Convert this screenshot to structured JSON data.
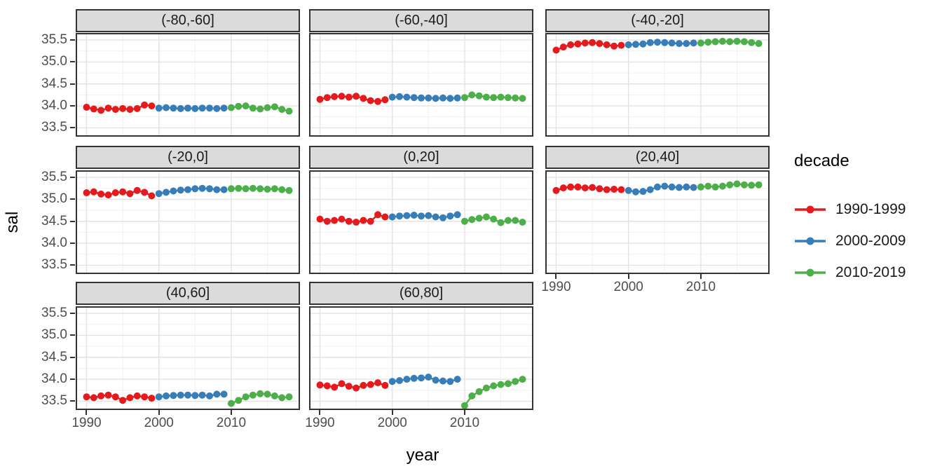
{
  "chart_data": {
    "type": "line",
    "title": "",
    "xlabel": "year",
    "ylabel": "sal",
    "xlim": [
      1988.5,
      2019.5
    ],
    "ylim": [
      33.3,
      35.66
    ],
    "x_ticks": [
      1990,
      2000,
      2010
    ],
    "y_ticks": [
      33.5,
      34.0,
      34.5,
      35.0,
      35.5
    ],
    "x_minor": [
      1995,
      2005,
      2015
    ],
    "y_minor": [
      33.75,
      34.25,
      34.75,
      35.25
    ],
    "grid": true,
    "legend_position": "right",
    "legend": {
      "title": "decade",
      "entries": [
        {
          "label": "1990-1999",
          "color": "#E41A1C"
        },
        {
          "label": "2000-2009",
          "color": "#377EB8"
        },
        {
          "label": "2010-2019",
          "color": "#4DAF4A"
        }
      ]
    },
    "x_by_series": {
      "1990-1999": [
        1990,
        1991,
        1992,
        1993,
        1994,
        1995,
        1996,
        1997,
        1998,
        1999
      ],
      "2000-2009": [
        2000,
        2001,
        2002,
        2003,
        2004,
        2005,
        2006,
        2007,
        2008,
        2009
      ],
      "2010-2019": [
        2010,
        2011,
        2012,
        2013,
        2014,
        2015,
        2016,
        2017,
        2018
      ]
    },
    "facets": [
      {
        "label": "(-80,-60]",
        "series": [
          {
            "name": "1990-1999",
            "y": [
              33.97,
              33.93,
              33.9,
              33.95,
              33.92,
              33.94,
              33.92,
              33.94,
              34.02,
              34.0
            ]
          },
          {
            "name": "2000-2009",
            "y": [
              33.95,
              33.96,
              33.95,
              33.94,
              33.95,
              33.94,
              33.95,
              33.95,
              33.94,
              33.95
            ]
          },
          {
            "name": "2010-2019",
            "y": [
              33.96,
              33.99,
              34.0,
              33.95,
              33.93,
              33.96,
              33.98,
              33.92,
              33.88
            ]
          }
        ]
      },
      {
        "label": "(-60,-40]",
        "series": [
          {
            "name": "1990-1999",
            "y": [
              34.15,
              34.19,
              34.21,
              34.22,
              34.2,
              34.22,
              34.17,
              34.12,
              34.1,
              34.14
            ]
          },
          {
            "name": "2000-2009",
            "y": [
              34.2,
              34.21,
              34.2,
              34.19,
              34.18,
              34.18,
              34.17,
              34.18,
              34.17,
              34.18
            ]
          },
          {
            "name": "2010-2019",
            "y": [
              34.19,
              34.25,
              34.23,
              34.2,
              34.19,
              34.2,
              34.19,
              34.18,
              34.17
            ]
          }
        ]
      },
      {
        "label": "(-40,-20]",
        "series": [
          {
            "name": "1990-1999",
            "y": [
              35.27,
              35.34,
              35.39,
              35.41,
              35.43,
              35.44,
              35.42,
              35.39,
              35.36,
              35.38
            ]
          },
          {
            "name": "2000-2009",
            "y": [
              35.39,
              35.4,
              35.41,
              35.44,
              35.45,
              35.44,
              35.43,
              35.42,
              35.42,
              35.43
            ]
          },
          {
            "name": "2010-2019",
            "y": [
              35.43,
              35.45,
              35.46,
              35.47,
              35.46,
              35.47,
              35.46,
              35.44,
              35.42
            ]
          }
        ]
      },
      {
        "label": "(-20,0]",
        "series": [
          {
            "name": "1990-1999",
            "y": [
              35.15,
              35.17,
              35.12,
              35.1,
              35.15,
              35.17,
              35.13,
              35.2,
              35.16,
              35.08
            ]
          },
          {
            "name": "2000-2009",
            "y": [
              35.13,
              35.16,
              35.19,
              35.21,
              35.22,
              35.24,
              35.25,
              35.24,
              35.22,
              35.22
            ]
          },
          {
            "name": "2010-2019",
            "y": [
              35.24,
              35.25,
              35.24,
              35.25,
              35.24,
              35.23,
              35.24,
              35.22,
              35.2
            ]
          }
        ]
      },
      {
        "label": "(0,20]",
        "series": [
          {
            "name": "1990-1999",
            "y": [
              34.55,
              34.5,
              34.52,
              34.55,
              34.5,
              34.48,
              34.52,
              34.5,
              34.65,
              34.6
            ]
          },
          {
            "name": "2000-2009",
            "y": [
              34.6,
              34.62,
              34.63,
              34.64,
              34.62,
              34.63,
              34.6,
              34.58,
              34.62,
              34.65
            ]
          },
          {
            "name": "2010-2019",
            "y": [
              34.5,
              34.54,
              34.57,
              34.6,
              34.55,
              34.47,
              34.52,
              34.52,
              34.48
            ]
          }
        ]
      },
      {
        "label": "(20,40]",
        "series": [
          {
            "name": "1990-1999",
            "y": [
              35.2,
              35.26,
              35.28,
              35.28,
              35.26,
              35.27,
              35.24,
              35.22,
              35.23,
              35.22
            ]
          },
          {
            "name": "2000-2009",
            "y": [
              35.2,
              35.17,
              35.18,
              35.22,
              35.28,
              35.3,
              35.28,
              35.27,
              35.28,
              35.27
            ]
          },
          {
            "name": "2010-2019",
            "y": [
              35.28,
              35.3,
              35.28,
              35.3,
              35.33,
              35.35,
              35.33,
              35.32,
              35.33
            ]
          }
        ]
      },
      {
        "label": "(40,60]",
        "series": [
          {
            "name": "1990-1999",
            "y": [
              33.6,
              33.58,
              33.62,
              33.64,
              33.6,
              33.52,
              33.58,
              33.62,
              33.6,
              33.57
            ]
          },
          {
            "name": "2000-2009",
            "y": [
              33.6,
              33.62,
              33.63,
              33.64,
              33.64,
              33.63,
              33.64,
              33.62,
              33.66,
              33.66
            ]
          },
          {
            "name": "2010-2019",
            "y": [
              33.45,
              33.52,
              33.6,
              33.64,
              33.67,
              33.66,
              33.62,
              33.58,
              33.6
            ]
          }
        ]
      },
      {
        "label": "(60,80]",
        "series": [
          {
            "name": "1990-1999",
            "y": [
              33.87,
              33.85,
              33.82,
              33.9,
              33.84,
              33.8,
              33.86,
              33.88,
              33.92,
              33.86
            ]
          },
          {
            "name": "2000-2009",
            "y": [
              33.95,
              33.97,
              34.0,
              34.02,
              34.03,
              34.05,
              33.98,
              33.96,
              33.95,
              34.0
            ]
          },
          {
            "name": "2010-2019",
            "y": [
              33.4,
              33.62,
              33.72,
              33.8,
              33.85,
              33.88,
              33.9,
              33.95,
              34.0
            ]
          }
        ]
      }
    ]
  },
  "theme": {
    "strip_bg": "#DBDBDB",
    "border": "#333333",
    "grid_major": "#E3E3E3",
    "grid_minor": "#F1F1F1",
    "tick_text": "#4D4D4D",
    "tick_mark": "#333333",
    "point_radius": 5,
    "line_width": 2.4
  }
}
